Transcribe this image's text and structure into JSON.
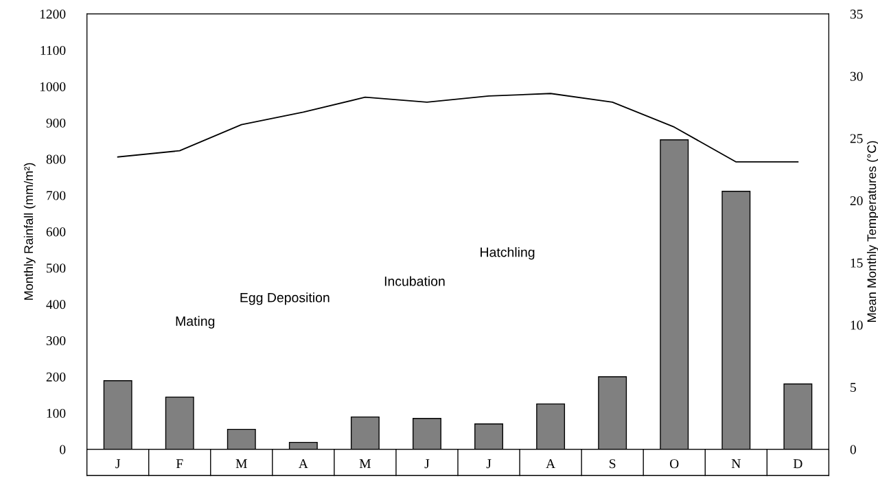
{
  "chart_data": {
    "type": "bar",
    "ylabel": "Monthly Rainfall (mm/m²)",
    "y2label": "Mean Monthly Temperatures (°C)",
    "categories": [
      "J",
      "F",
      "M",
      "A",
      "M",
      "J",
      "J",
      "A",
      "S",
      "O",
      "N",
      "D"
    ],
    "series": [
      {
        "color": "#808080",
        "values": [
          189,
          144,
          55,
          19,
          89,
          85,
          70,
          125,
          200,
          853,
          711,
          180
        ]
      },
      {
        "type": "line",
        "axis": "y2",
        "color": "#000000",
        "values": [
          23.5,
          24.0,
          26.1,
          27.1,
          28.3,
          27.9,
          28.4,
          28.6,
          27.9,
          25.9,
          23.1,
          23.1
        ]
      }
    ],
    "ylim": [
      0,
      1200
    ],
    "yticks": [
      0,
      100,
      200,
      300,
      400,
      500,
      600,
      700,
      800,
      900,
      1000,
      1100,
      1200
    ],
    "y2lim": [
      0,
      35
    ],
    "y2ticks": [
      0,
      5,
      10,
      15,
      20,
      25,
      30,
      35
    ],
    "annotations": [
      "Mating",
      "Egg Deposition",
      "Incubation",
      "Hatchling"
    ],
    "grid": false,
    "legend": false,
    "marker": "none",
    "line_style": "solid"
  }
}
